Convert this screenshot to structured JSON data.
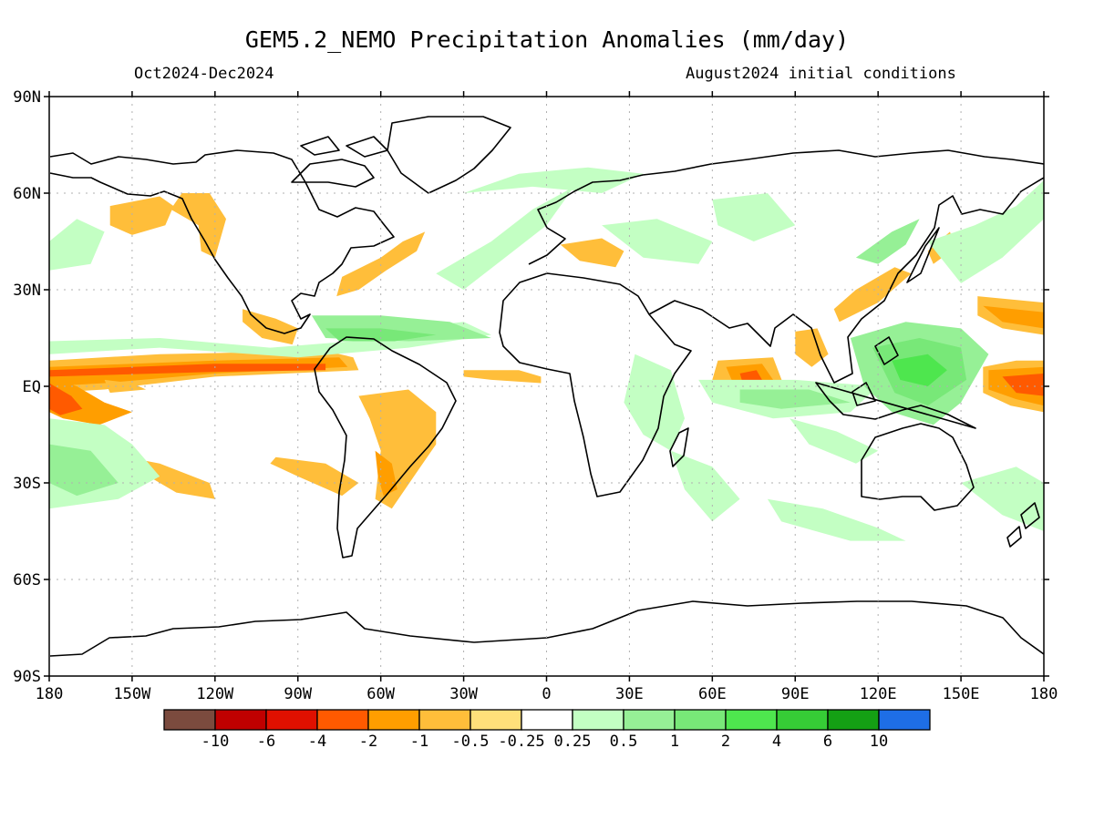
{
  "title": "GEM5.2_NEMO Precipitation Anomalies (mm/day)",
  "period": "Oct2024-Dec2024",
  "init": "August2024 initial conditions",
  "lat_labels": [
    {
      "lat": 90,
      "label": "90N"
    },
    {
      "lat": 60,
      "label": "60N"
    },
    {
      "lat": 30,
      "label": "30N"
    },
    {
      "lat": 0,
      "label": "EQ"
    },
    {
      "lat": -30,
      "label": "30S"
    },
    {
      "lat": -60,
      "label": "60S"
    },
    {
      "lat": -90,
      "label": "90S"
    }
  ],
  "lon_labels": [
    {
      "x": 0,
      "label": "180"
    },
    {
      "x": 30,
      "label": "150W"
    },
    {
      "x": 60,
      "label": "120W"
    },
    {
      "x": 90,
      "label": "90W"
    },
    {
      "x": 120,
      "label": "60W"
    },
    {
      "x": 150,
      "label": "30W"
    },
    {
      "x": 180,
      "label": "0"
    },
    {
      "x": 210,
      "label": "30E"
    },
    {
      "x": 240,
      "label": "60E"
    },
    {
      "x": 270,
      "label": "90E"
    },
    {
      "x": 300,
      "label": "120E"
    },
    {
      "x": 330,
      "label": "150E"
    },
    {
      "x": 360,
      "label": "180"
    }
  ],
  "colorbar": {
    "colors": [
      "#7b4b3e",
      "#c00000",
      "#e01000",
      "#ff5a00",
      "#ff9e00",
      "#ffbe3a",
      "#ffe07a",
      "#ffffff",
      "#c3ffc3",
      "#96f096",
      "#78e878",
      "#4ee64e",
      "#36cc36",
      "#14a014",
      "#1e6ee6"
    ],
    "labels": [
      "-10",
      "-6",
      "-4",
      "-2",
      "-1",
      "-0.5",
      "-0.25",
      "0.25",
      "0.5",
      "1",
      "2",
      "4",
      "6",
      "10"
    ]
  },
  "anomaly_regions": [
    {
      "color": "#ffbe3a",
      "pts": [
        [
          0,
          8
        ],
        [
          40,
          10
        ],
        [
          100,
          11
        ],
        [
          110,
          9
        ],
        [
          112,
          5
        ],
        [
          60,
          3
        ],
        [
          20,
          -1
        ],
        [
          0,
          -2
        ]
      ]
    },
    {
      "color": "#ff9e00",
      "pts": [
        [
          0,
          6
        ],
        [
          60,
          8
        ],
        [
          105,
          9
        ],
        [
          108,
          6
        ],
        [
          60,
          4
        ],
        [
          20,
          1
        ],
        [
          0,
          0
        ]
      ]
    },
    {
      "color": "#ff5a00",
      "pts": [
        [
          0,
          5
        ],
        [
          60,
          7
        ],
        [
          100,
          7
        ],
        [
          100,
          5
        ],
        [
          60,
          4.5
        ],
        [
          0,
          3
        ]
      ]
    },
    {
      "color": "#ff9e00",
      "pts": [
        [
          0,
          3
        ],
        [
          10,
          0
        ],
        [
          20,
          -5
        ],
        [
          30,
          -8
        ],
        [
          18,
          -12
        ],
        [
          5,
          -10
        ],
        [
          0,
          -8
        ]
      ]
    },
    {
      "color": "#ff5a00",
      "pts": [
        [
          0,
          1
        ],
        [
          8,
          -3
        ],
        [
          12,
          -7
        ],
        [
          4,
          -9
        ],
        [
          0,
          -7
        ]
      ]
    },
    {
      "color": "#ffbe3a",
      "pts": [
        [
          20,
          2
        ],
        [
          30,
          1
        ],
        [
          35,
          -1
        ],
        [
          22,
          -2
        ]
      ]
    },
    {
      "color": "#ffbe3a",
      "pts": [
        [
          82,
          -22
        ],
        [
          100,
          -24
        ],
        [
          112,
          -30
        ],
        [
          106,
          -34
        ],
        [
          90,
          -28
        ],
        [
          80,
          -24
        ]
      ]
    },
    {
      "color": "#ffbe3a",
      "pts": [
        [
          28,
          -22
        ],
        [
          40,
          -24
        ],
        [
          58,
          -30
        ],
        [
          60,
          -35
        ],
        [
          46,
          -33
        ],
        [
          30,
          -25
        ]
      ]
    },
    {
      "color": "#ffbe3a",
      "pts": [
        [
          112,
          -3
        ],
        [
          130,
          -1
        ],
        [
          140,
          -8
        ],
        [
          140,
          -18
        ],
        [
          132,
          -28
        ],
        [
          124,
          -38
        ],
        [
          118,
          -35
        ],
        [
          120,
          -20
        ],
        [
          116,
          -10
        ]
      ]
    },
    {
      "color": "#ff9e00",
      "pts": [
        [
          118,
          -20
        ],
        [
          124,
          -24
        ],
        [
          126,
          -32
        ],
        [
          121,
          -34
        ],
        [
          119,
          -28
        ]
      ]
    },
    {
      "color": "#ffbe3a",
      "pts": [
        [
          60,
          40
        ],
        [
          64,
          52
        ],
        [
          58,
          60
        ],
        [
          48,
          60
        ],
        [
          44,
          55
        ],
        [
          54,
          50
        ],
        [
          55,
          42
        ]
      ]
    },
    {
      "color": "#ffbe3a",
      "pts": [
        [
          22,
          56
        ],
        [
          40,
          59
        ],
        [
          45,
          56
        ],
        [
          42,
          50
        ],
        [
          30,
          47
        ],
        [
          22,
          50
        ]
      ]
    },
    {
      "color": "#ffbe3a",
      "pts": [
        [
          70,
          24
        ],
        [
          82,
          21
        ],
        [
          90,
          18
        ],
        [
          88,
          13
        ],
        [
          77,
          15
        ],
        [
          70,
          20
        ]
      ]
    },
    {
      "color": "#ffbe3a",
      "pts": [
        [
          106,
          34
        ],
        [
          120,
          40
        ],
        [
          128,
          45
        ],
        [
          136,
          48
        ],
        [
          133,
          42
        ],
        [
          122,
          36
        ],
        [
          112,
          30
        ],
        [
          104,
          28
        ]
      ]
    },
    {
      "color": "#ffbe3a",
      "pts": [
        [
          150,
          5
        ],
        [
          170,
          5
        ],
        [
          178,
          3
        ],
        [
          178,
          1
        ],
        [
          160,
          2
        ],
        [
          150,
          3
        ]
      ]
    },
    {
      "color": "#ffbe3a",
      "pts": [
        [
          185,
          44
        ],
        [
          200,
          46
        ],
        [
          208,
          42
        ],
        [
          205,
          37
        ],
        [
          192,
          39
        ]
      ]
    },
    {
      "color": "#ffbe3a",
      "pts": [
        [
          242,
          8
        ],
        [
          262,
          9
        ],
        [
          266,
          0
        ],
        [
          250,
          -2
        ],
        [
          240,
          2
        ]
      ]
    },
    {
      "color": "#ff9e00",
      "pts": [
        [
          245,
          6
        ],
        [
          258,
          7
        ],
        [
          262,
          2
        ],
        [
          248,
          0
        ]
      ]
    },
    {
      "color": "#ff5a00",
      "pts": [
        [
          250,
          4
        ],
        [
          256,
          5
        ],
        [
          258,
          2
        ],
        [
          251,
          1
        ]
      ]
    },
    {
      "color": "#ffbe3a",
      "pts": [
        [
          270,
          17
        ],
        [
          278,
          18
        ],
        [
          282,
          10
        ],
        [
          276,
          6
        ],
        [
          270,
          10
        ]
      ]
    },
    {
      "color": "#ffbe3a",
      "pts": [
        [
          286,
          20
        ],
        [
          300,
          26
        ],
        [
          312,
          35
        ],
        [
          306,
          37
        ],
        [
          292,
          30
        ],
        [
          284,
          24
        ]
      ]
    },
    {
      "color": "#ffbe3a",
      "pts": [
        [
          318,
          42
        ],
        [
          326,
          48
        ],
        [
          328,
          43
        ],
        [
          320,
          38
        ]
      ]
    },
    {
      "color": "#ffbe3a",
      "pts": [
        [
          336,
          28
        ],
        [
          360,
          26
        ],
        [
          360,
          16
        ],
        [
          345,
          18
        ],
        [
          336,
          22
        ]
      ]
    },
    {
      "color": "#ff9e00",
      "pts": [
        [
          338,
          25
        ],
        [
          360,
          23
        ],
        [
          360,
          18
        ],
        [
          345,
          20
        ]
      ]
    },
    {
      "color": "#ffbe3a",
      "pts": [
        [
          338,
          6
        ],
        [
          350,
          8
        ],
        [
          360,
          8
        ],
        [
          360,
          -8
        ],
        [
          348,
          -6
        ],
        [
          338,
          -2
        ]
      ]
    },
    {
      "color": "#ff9e00",
      "pts": [
        [
          340,
          5
        ],
        [
          360,
          6
        ],
        [
          360,
          -6
        ],
        [
          350,
          -4
        ],
        [
          340,
          -1
        ]
      ]
    },
    {
      "color": "#ff5a00",
      "pts": [
        [
          345,
          3
        ],
        [
          360,
          4
        ],
        [
          360,
          -3
        ],
        [
          350,
          -2
        ]
      ]
    },
    {
      "color": "#c3ffc3",
      "pts": [
        [
          0,
          -10
        ],
        [
          20,
          -12
        ],
        [
          30,
          -18
        ],
        [
          40,
          -28
        ],
        [
          25,
          -35
        ],
        [
          0,
          -38
        ]
      ]
    },
    {
      "color": "#96f096",
      "pts": [
        [
          0,
          -18
        ],
        [
          15,
          -20
        ],
        [
          25,
          -30
        ],
        [
          10,
          -34
        ],
        [
          0,
          -30
        ]
      ]
    },
    {
      "color": "#c3ffc3",
      "pts": [
        [
          0,
          14
        ],
        [
          40,
          15
        ],
        [
          80,
          12
        ],
        [
          110,
          14
        ],
        [
          130,
          18
        ],
        [
          150,
          20
        ],
        [
          160,
          16
        ],
        [
          130,
          12
        ],
        [
          90,
          9
        ],
        [
          40,
          12
        ],
        [
          0,
          10
        ]
      ]
    },
    {
      "color": "#96f096",
      "pts": [
        [
          95,
          22
        ],
        [
          120,
          22
        ],
        [
          145,
          20
        ],
        [
          160,
          15
        ],
        [
          130,
          14
        ],
        [
          100,
          15
        ]
      ]
    },
    {
      "color": "#78e878",
      "pts": [
        [
          100,
          18
        ],
        [
          120,
          18
        ],
        [
          140,
          16
        ],
        [
          125,
          14
        ],
        [
          105,
          14
        ]
      ]
    },
    {
      "color": "#c3ffc3",
      "pts": [
        [
          140,
          35
        ],
        [
          160,
          45
        ],
        [
          175,
          55
        ],
        [
          190,
          62
        ],
        [
          180,
          50
        ],
        [
          165,
          40
        ],
        [
          150,
          30
        ]
      ]
    },
    {
      "color": "#c3ffc3",
      "pts": [
        [
          150,
          60
        ],
        [
          170,
          66
        ],
        [
          195,
          68
        ],
        [
          215,
          66
        ],
        [
          200,
          60
        ],
        [
          175,
          62
        ]
      ]
    },
    {
      "color": "#c3ffc3",
      "pts": [
        [
          200,
          50
        ],
        [
          220,
          52
        ],
        [
          240,
          45
        ],
        [
          235,
          38
        ],
        [
          215,
          40
        ]
      ]
    },
    {
      "color": "#c3ffc3",
      "pts": [
        [
          240,
          58
        ],
        [
          260,
          60
        ],
        [
          270,
          50
        ],
        [
          255,
          45
        ],
        [
          242,
          50
        ]
      ]
    },
    {
      "color": "#c3ffc3",
      "pts": [
        [
          212,
          10
        ],
        [
          225,
          5
        ],
        [
          230,
          -10
        ],
        [
          225,
          -20
        ],
        [
          215,
          -15
        ],
        [
          208,
          -5
        ]
      ]
    },
    {
      "color": "#c3ffc3",
      "pts": [
        [
          225,
          -20
        ],
        [
          240,
          -25
        ],
        [
          250,
          -35
        ],
        [
          240,
          -42
        ],
        [
          230,
          -32
        ]
      ]
    },
    {
      "color": "#c3ffc3",
      "pts": [
        [
          260,
          -35
        ],
        [
          280,
          -38
        ],
        [
          300,
          -44
        ],
        [
          310,
          -48
        ],
        [
          290,
          -48
        ],
        [
          265,
          -42
        ]
      ]
    },
    {
      "color": "#c3ffc3",
      "pts": [
        [
          235,
          2
        ],
        [
          270,
          2
        ],
        [
          300,
          0
        ],
        [
          290,
          -8
        ],
        [
          262,
          -10
        ],
        [
          240,
          -5
        ]
      ]
    },
    {
      "color": "#96f096",
      "pts": [
        [
          250,
          -1
        ],
        [
          275,
          -1
        ],
        [
          290,
          -5
        ],
        [
          265,
          -7
        ],
        [
          250,
          -5
        ]
      ]
    },
    {
      "color": "#96f096",
      "pts": [
        [
          290,
          15
        ],
        [
          310,
          20
        ],
        [
          330,
          18
        ],
        [
          340,
          10
        ],
        [
          330,
          -5
        ],
        [
          320,
          -12
        ],
        [
          305,
          -8
        ],
        [
          295,
          0
        ]
      ]
    },
    {
      "color": "#78e878",
      "pts": [
        [
          298,
          12
        ],
        [
          315,
          15
        ],
        [
          330,
          12
        ],
        [
          332,
          2
        ],
        [
          318,
          -6
        ],
        [
          306,
          -2
        ]
      ]
    },
    {
      "color": "#4ee64e",
      "pts": [
        [
          305,
          8
        ],
        [
          318,
          10
        ],
        [
          325,
          5
        ],
        [
          318,
          0
        ],
        [
          308,
          2
        ]
      ]
    },
    {
      "color": "#c3ffc3",
      "pts": [
        [
          318,
          45
        ],
        [
          335,
          50
        ],
        [
          350,
          56
        ],
        [
          360,
          64
        ],
        [
          360,
          52
        ],
        [
          345,
          40
        ],
        [
          330,
          32
        ]
      ]
    },
    {
      "color": "#c3ffc3",
      "pts": [
        [
          330,
          -30
        ],
        [
          345,
          -40
        ],
        [
          360,
          -45
        ],
        [
          360,
          -30
        ],
        [
          350,
          -25
        ]
      ]
    },
    {
      "color": "#c3ffc3",
      "pts": [
        [
          0,
          45
        ],
        [
          10,
          52
        ],
        [
          20,
          48
        ],
        [
          15,
          38
        ],
        [
          0,
          36
        ]
      ]
    },
    {
      "color": "#96f096",
      "pts": [
        [
          292,
          40
        ],
        [
          305,
          48
        ],
        [
          315,
          52
        ],
        [
          310,
          44
        ],
        [
          300,
          38
        ]
      ]
    },
    {
      "color": "#c3ffc3",
      "pts": [
        [
          268,
          -10
        ],
        [
          285,
          -14
        ],
        [
          300,
          -20
        ],
        [
          292,
          -24
        ],
        [
          275,
          -18
        ]
      ]
    }
  ]
}
